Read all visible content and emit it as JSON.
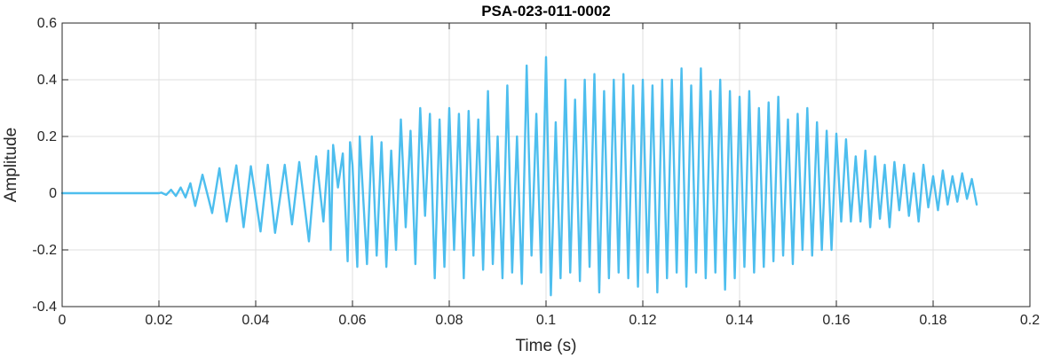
{
  "chart_data": {
    "type": "line",
    "title": "PSA-023-011-0002",
    "xlabel": "Time (s)",
    "ylabel": "Amplitude",
    "xlim": [
      0,
      0.2
    ],
    "ylim": [
      -0.4,
      0.6
    ],
    "xticks": [
      0,
      0.02,
      0.04,
      0.06,
      0.08,
      0.1,
      0.12,
      0.14,
      0.16,
      0.18,
      0.2
    ],
    "xtick_labels": [
      "0",
      "0.02",
      "0.04",
      "0.06",
      "0.08",
      "0.1",
      "0.12",
      "0.14",
      "0.16",
      "0.18",
      "0.2"
    ],
    "yticks": [
      -0.4,
      -0.2,
      0,
      0.2,
      0.4,
      0.6
    ],
    "ytick_labels": [
      "-0.4",
      "-0.2",
      "0",
      "0.2",
      "0.4",
      "0.6"
    ],
    "grid": true,
    "line_color": "#4DBEEE",
    "series": [
      {
        "x": [
          0,
          0.02,
          0.0205,
          0.0215,
          0.0225,
          0.0235,
          0.0245,
          0.0255,
          0.0265,
          0.0275,
          0.029,
          0.031,
          0.0325,
          0.034,
          0.036,
          0.0375,
          0.039,
          0.041,
          0.0425,
          0.044,
          0.046,
          0.0475,
          0.049,
          0.051,
          0.0525,
          0.054,
          0.055,
          0.0555,
          0.056,
          0.057,
          0.058,
          0.059,
          0.0595,
          0.06,
          0.061,
          0.0615,
          0.062,
          0.063,
          0.064,
          0.065,
          0.066,
          0.067,
          0.068,
          0.069,
          0.07,
          0.071,
          0.072,
          0.073,
          0.074,
          0.075,
          0.076,
          0.077,
          0.078,
          0.079,
          0.08,
          0.081,
          0.082,
          0.083,
          0.084,
          0.085,
          0.086,
          0.087,
          0.088,
          0.089,
          0.09,
          0.091,
          0.092,
          0.093,
          0.094,
          0.095,
          0.096,
          0.097,
          0.098,
          0.099,
          0.1,
          0.101,
          0.102,
          0.103,
          0.104,
          0.105,
          0.106,
          0.107,
          0.108,
          0.109,
          0.11,
          0.111,
          0.112,
          0.113,
          0.114,
          0.115,
          0.116,
          0.117,
          0.118,
          0.119,
          0.12,
          0.121,
          0.122,
          0.123,
          0.124,
          0.125,
          0.126,
          0.127,
          0.128,
          0.129,
          0.13,
          0.131,
          0.132,
          0.133,
          0.134,
          0.135,
          0.136,
          0.137,
          0.138,
          0.139,
          0.14,
          0.141,
          0.142,
          0.143,
          0.144,
          0.145,
          0.146,
          0.147,
          0.148,
          0.149,
          0.15,
          0.151,
          0.152,
          0.153,
          0.154,
          0.155,
          0.156,
          0.157,
          0.158,
          0.159,
          0.16,
          0.161,
          0.162,
          0.163,
          0.164,
          0.165,
          0.166,
          0.167,
          0.168,
          0.169,
          0.17,
          0.171,
          0.172,
          0.173,
          0.174,
          0.175,
          0.176,
          0.177,
          0.178,
          0.179,
          0.18,
          0.181,
          0.182,
          0.183,
          0.184,
          0.185,
          0.186,
          0.187,
          0.188,
          0.189
        ],
        "y": [
          0,
          0,
          0.002,
          -0.006,
          0.012,
          -0.01,
          0.02,
          -0.015,
          0.035,
          -0.045,
          0.065,
          -0.07,
          0.088,
          -0.1,
          0.098,
          -0.12,
          0.095,
          -0.135,
          0.1,
          -0.14,
          0.1,
          -0.11,
          0.11,
          -0.17,
          0.13,
          -0.1,
          0.15,
          -0.2,
          0.17,
          0.02,
          0.14,
          -0.24,
          0.18,
          0.1,
          -0.26,
          0.2,
          0.05,
          -0.25,
          0.2,
          -0.22,
          0.18,
          -0.26,
          0.15,
          -0.2,
          0.26,
          -0.12,
          0.22,
          -0.25,
          0.3,
          -0.08,
          0.28,
          -0.3,
          0.26,
          -0.26,
          0.3,
          -0.2,
          0.28,
          -0.3,
          0.29,
          -0.22,
          0.26,
          -0.27,
          0.36,
          -0.25,
          0.2,
          -0.3,
          0.38,
          -0.28,
          0.2,
          -0.32,
          0.45,
          -0.22,
          0.28,
          -0.28,
          0.48,
          -0.36,
          0.25,
          -0.3,
          0.4,
          -0.28,
          0.33,
          -0.31,
          0.4,
          -0.26,
          0.42,
          -0.35,
          0.36,
          -0.3,
          0.4,
          -0.28,
          0.42,
          -0.3,
          0.38,
          -0.33,
          0.4,
          -0.28,
          0.38,
          -0.35,
          0.4,
          -0.3,
          0.4,
          -0.28,
          0.44,
          -0.33,
          0.38,
          -0.28,
          0.44,
          -0.3,
          0.36,
          -0.28,
          0.4,
          -0.34,
          0.36,
          -0.3,
          0.34,
          -0.26,
          0.36,
          -0.28,
          0.3,
          -0.26,
          0.32,
          -0.24,
          0.34,
          -0.22,
          0.26,
          -0.25,
          0.28,
          -0.2,
          0.3,
          -0.22,
          0.25,
          -0.2,
          0.22,
          -0.2,
          0.21,
          -0.1,
          0.19,
          -0.1,
          0.13,
          -0.1,
          0.15,
          -0.12,
          0.13,
          -0.09,
          0.1,
          -0.12,
          0.11,
          -0.06,
          0.1,
          -0.08,
          0.07,
          -0.1,
          0.1,
          -0.05,
          0.06,
          -0.06,
          0.08,
          -0.04,
          0.06,
          -0.03,
          0.07,
          -0.02,
          0.05,
          -0.04
        ]
      }
    ]
  }
}
